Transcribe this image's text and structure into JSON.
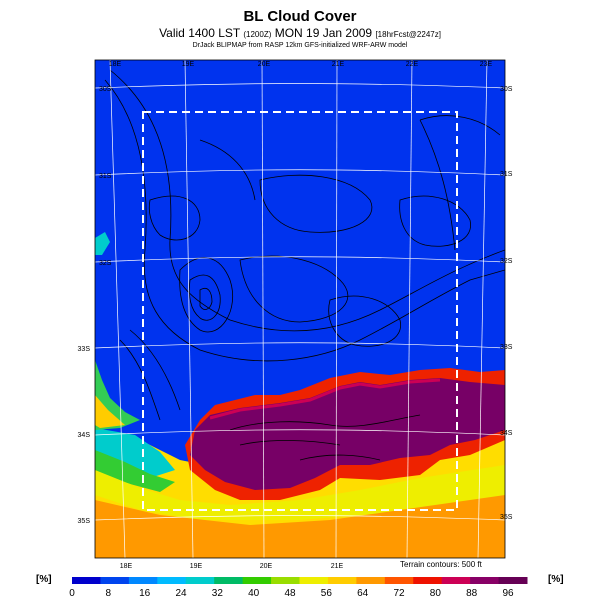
{
  "title": "BL Cloud Cover",
  "subtitle_main": "Valid 1400 LST",
  "subtitle_utc": "(1200Z)",
  "subtitle_date": "MON 19 Jan 2009",
  "subtitle_run": "[18hrFcst@2247z]",
  "credit": "DrJack BLIPMAP from RASP 12km GFS-initialized WRF-ARW model",
  "terrain_note": "Terrain contours: 500 ft",
  "unit_left": "[%]",
  "unit_right": "[%]",
  "map": {
    "lon_top": [
      "18E",
      "19E",
      "20E",
      "21E",
      "22E",
      "23E"
    ],
    "lon_bottom": [
      "18E",
      "19E",
      "20E",
      "21E"
    ],
    "lat_left": [
      "33S",
      "34S",
      "35S"
    ],
    "lat_left_faint": [
      "30S",
      "31S",
      "32S"
    ],
    "lat_right": [
      "30S",
      "31S",
      "32S",
      "33S",
      "34S",
      "35S"
    ]
  },
  "colorbar": {
    "ticks": [
      "0",
      "8",
      "16",
      "24",
      "32",
      "40",
      "48",
      "56",
      "64",
      "72",
      "80",
      "88",
      "96"
    ],
    "colors": [
      "#0000cc",
      "#0044ee",
      "#0088ff",
      "#00bbff",
      "#00cccc",
      "#00bb66",
      "#33cc00",
      "#99dd00",
      "#eeee00",
      "#ffcc00",
      "#ff9900",
      "#ff5500",
      "#ee1100",
      "#cc0055",
      "#880066",
      "#660055"
    ]
  }
}
